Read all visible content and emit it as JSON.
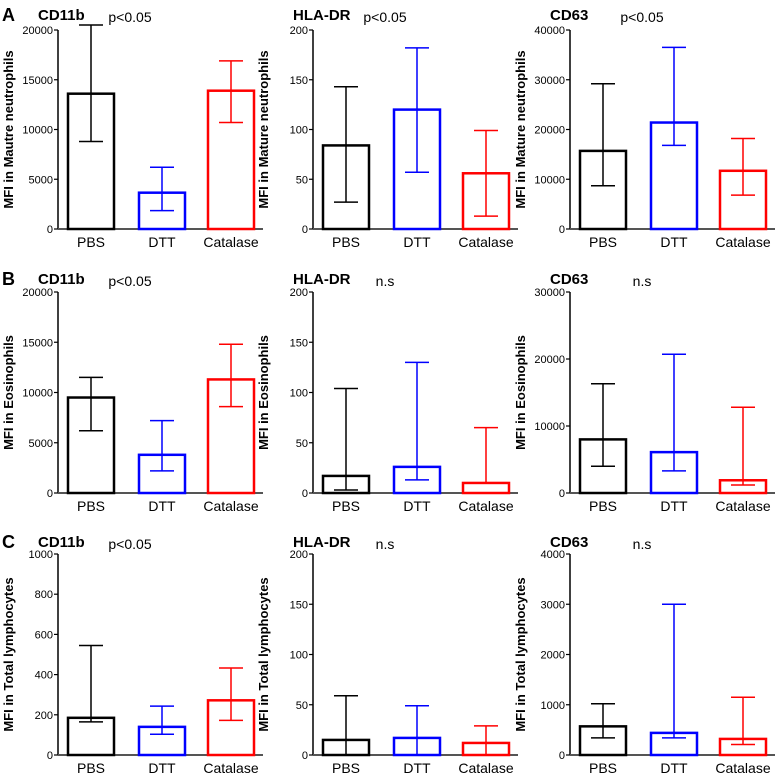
{
  "chart_data": [
    {
      "type": "bar",
      "panel": "A",
      "title": "CD11b",
      "pvalue": "p<0.05",
      "ylabel": "MFI in Mautre neutrophils",
      "categories": [
        "PBS",
        "DTT",
        "Catalase"
      ],
      "values": [
        13600,
        3650,
        13900
      ],
      "err_low": [
        8800,
        1850,
        10700
      ],
      "err_high": [
        20500,
        6200,
        16900
      ],
      "ylim": [
        0,
        20000
      ],
      "yticks": [
        "0",
        "5000",
        "10000",
        "15000",
        "20000"
      ]
    },
    {
      "type": "bar",
      "panel": "",
      "title": "HLA-DR",
      "pvalue": "p<0.05",
      "ylabel": "MFI in Mature neutrophils",
      "categories": [
        "PBS",
        "DTT",
        "Catalase"
      ],
      "values": [
        84,
        120,
        56
      ],
      "err_low": [
        27,
        57,
        13
      ],
      "err_high": [
        143,
        182,
        99
      ],
      "ylim": [
        0,
        200
      ],
      "yticks": [
        "0",
        "50",
        "100",
        "150",
        "200"
      ]
    },
    {
      "type": "bar",
      "panel": "",
      "title": "CD63",
      "pvalue": "p<0.05",
      "ylabel": "MFI in Mature neutrophils",
      "categories": [
        "PBS",
        "DTT",
        "Catalase"
      ],
      "values": [
        15700,
        21400,
        11700
      ],
      "err_low": [
        8700,
        16800,
        6800
      ],
      "err_high": [
        29200,
        36500,
        18200
      ],
      "ylim": [
        0,
        40000
      ],
      "yticks": [
        "0",
        "10000",
        "20000",
        "30000",
        "40000"
      ]
    },
    {
      "type": "bar",
      "panel": "B",
      "title": "CD11b",
      "pvalue": "p<0.05",
      "ylabel": "MFI in Eosinophils",
      "categories": [
        "PBS",
        "DTT",
        "Catalase"
      ],
      "values": [
        9500,
        3800,
        11300
      ],
      "err_low": [
        6200,
        2200,
        8600
      ],
      "err_high": [
        11500,
        7200,
        14800
      ],
      "ylim": [
        0,
        20000
      ],
      "yticks": [
        "0",
        "5000",
        "10000",
        "15000",
        "20000"
      ]
    },
    {
      "type": "bar",
      "panel": "",
      "title": "HLA-DR",
      "pvalue": "n.s",
      "ylabel": "MFI in Eosinophils",
      "categories": [
        "PBS",
        "DTT",
        "Catalase"
      ],
      "values": [
        17,
        26,
        10
      ],
      "err_low": [
        3,
        13,
        10
      ],
      "err_high": [
        104,
        130,
        65
      ],
      "ylim": [
        0,
        200
      ],
      "yticks": [
        "0",
        "50",
        "100",
        "150",
        "200"
      ]
    },
    {
      "type": "bar",
      "panel": "",
      "title": "CD63",
      "pvalue": "n.s",
      "ylabel": "MFI in Eosinophils",
      "categories": [
        "PBS",
        "DTT",
        "Catalase"
      ],
      "values": [
        8000,
        6100,
        1900
      ],
      "err_low": [
        4000,
        3300,
        1200
      ],
      "err_high": [
        16300,
        20700,
        12800
      ],
      "ylim": [
        0,
        30000
      ],
      "yticks": [
        "0",
        "10000",
        "20000",
        "30000"
      ]
    },
    {
      "type": "bar",
      "panel": "C",
      "title": "CD11b",
      "pvalue": "p<0.05",
      "ylabel": "MFI in Total lymphocytes",
      "categories": [
        "PBS",
        "DTT",
        "Catalase"
      ],
      "values": [
        185,
        140,
        272
      ],
      "err_low": [
        165,
        103,
        172
      ],
      "err_high": [
        545,
        243,
        433
      ],
      "ylim": [
        0,
        1000
      ],
      "yticks": [
        "0",
        "200",
        "400",
        "600",
        "800",
        "1000"
      ]
    },
    {
      "type": "bar",
      "panel": "",
      "title": "HLA-DR",
      "pvalue": "n.s",
      "ylabel": "MFI in Total lymphocytes",
      "categories": [
        "PBS",
        "DTT",
        "Catalase"
      ],
      "values": [
        15,
        17,
        12
      ],
      "err_low": [
        0,
        0,
        0
      ],
      "err_high": [
        59,
        49,
        29
      ],
      "ylim": [
        0,
        200
      ],
      "yticks": [
        "0",
        "50",
        "100",
        "150",
        "200"
      ]
    },
    {
      "type": "bar",
      "panel": "",
      "title": "CD63",
      "pvalue": "n.s",
      "ylabel": "MFI in Total lymphocytes",
      "categories": [
        "PBS",
        "DTT",
        "Catalase"
      ],
      "values": [
        570,
        440,
        320
      ],
      "err_low": [
        340,
        340,
        210
      ],
      "err_high": [
        1020,
        3000,
        1150
      ],
      "ylim": [
        0,
        4000
      ],
      "yticks": [
        "0",
        "1000",
        "2000",
        "3000",
        "4000"
      ]
    }
  ],
  "colors": [
    "#000000",
    "#0000ff",
    "#ff0000"
  ]
}
